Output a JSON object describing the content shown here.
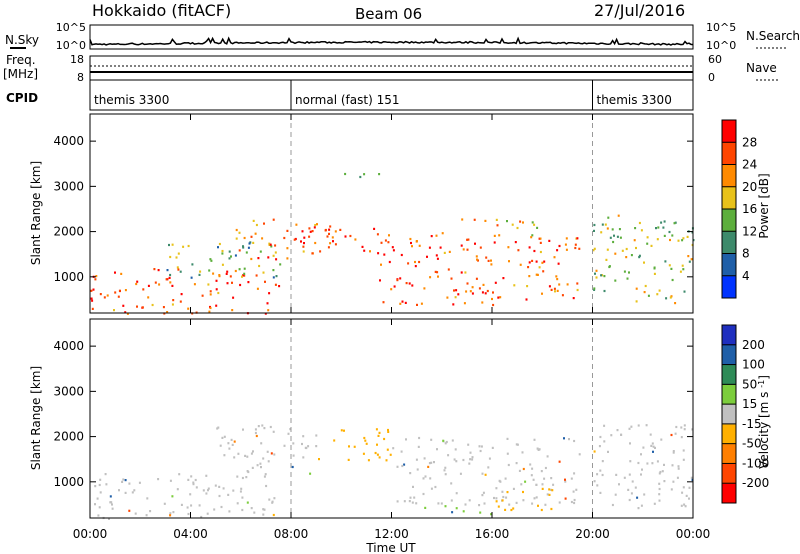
{
  "header": {
    "station": "Hokkaido (fitACF)",
    "beam": "Beam 06",
    "date": "27/Jul/2016"
  },
  "nsky": {
    "label": "N.Sky",
    "ticks_left": [
      "10^5",
      "10^0"
    ],
    "ticks_right": [
      "10^5",
      "10^0"
    ],
    "right_label": "N.Search"
  },
  "freq": {
    "label_lines": [
      "Freq.",
      "[MHz]"
    ],
    "ticks_left": [
      "18",
      "8"
    ],
    "ticks_right": [
      "60",
      "0"
    ],
    "right_label": "Nave"
  },
  "cpid": {
    "label": "CPID",
    "segments": [
      {
        "name": "themis 3300",
        "start_h": 0,
        "end_h": 8
      },
      {
        "name": "normal (fast) 151",
        "start_h": 8,
        "end_h": 20
      },
      {
        "name": "themis 3300",
        "start_h": 20,
        "end_h": 24
      }
    ]
  },
  "time_axis": {
    "label": "Time UT",
    "ticks": [
      "00:00",
      "04:00",
      "08:00",
      "12:00",
      "16:00",
      "20:00",
      "00:00"
    ],
    "range_h": [
      0,
      24
    ]
  },
  "chart_data": [
    {
      "type": "heatmap",
      "panel": "power",
      "ylabel": "Slant Range [km]",
      "yticks": [
        1000,
        2000,
        3000,
        4000
      ],
      "ylim": [
        200,
        4600
      ],
      "xlim": [
        0,
        24
      ],
      "colorbar": {
        "label": "Power [dB]",
        "ticks": [
          "4",
          "8",
          "12",
          "16",
          "20",
          "24",
          "28"
        ],
        "colors": [
          "#0033ff",
          "#1f5fa8",
          "#3d8a6b",
          "#5cae3c",
          "#e8c21a",
          "#ff8a00",
          "#ff4500",
          "#ff0000"
        ]
      },
      "regions": [
        {
          "x": [
            0,
            7.5
          ],
          "y": [
            200,
            1200
          ],
          "value": 26
        },
        {
          "x": [
            3,
            8
          ],
          "y": [
            1000,
            1800
          ],
          "value": 14
        },
        {
          "x": [
            5.8,
            9
          ],
          "y": [
            1400,
            2300
          ],
          "value": 24
        },
        {
          "x": [
            8,
            11.5
          ],
          "y": [
            1500,
            2200
          ],
          "value": 27
        },
        {
          "x": [
            11.5,
            14
          ],
          "y": [
            400,
            2000
          ],
          "value": 27
        },
        {
          "x": [
            14,
            19.5
          ],
          "y": [
            400,
            1900
          ],
          "value": 25
        },
        {
          "x": [
            14.5,
            18
          ],
          "y": [
            1900,
            2300
          ],
          "value": 20
        },
        {
          "x": [
            20,
            24
          ],
          "y": [
            400,
            2400
          ],
          "value": 15
        },
        {
          "x": [
            10,
            11.5
          ],
          "y": [
            3200,
            3400
          ],
          "value": 18
        }
      ]
    },
    {
      "type": "heatmap",
      "panel": "velocity",
      "ylabel": "Slant Range [km]",
      "yticks": [
        1000,
        2000,
        3000,
        4000
      ],
      "ylim": [
        200,
        4600
      ],
      "xlim": [
        0,
        24
      ],
      "colorbar": {
        "label": "Velocity [m s^-1]",
        "ticks": [
          "200",
          "100",
          "50",
          "15",
          "-15",
          "-50",
          "-100",
          "-200"
        ],
        "colors": [
          "#1f2fbf",
          "#1f5fa8",
          "#2e8b57",
          "#7ccd3c",
          "#c0c0c0",
          "#ffb000",
          "#ff7f00",
          "#ff4500",
          "#ff0000"
        ]
      },
      "regions": [
        {
          "x": [
            0,
            7.5
          ],
          "y": [
            200,
            1200
          ],
          "value": 0
        },
        {
          "x": [
            5,
            9
          ],
          "y": [
            1200,
            2300
          ],
          "value": 0
        },
        {
          "x": [
            9,
            12
          ],
          "y": [
            1500,
            2200
          ],
          "value": -40
        },
        {
          "x": [
            12,
            19.5
          ],
          "y": [
            500,
            2000
          ],
          "value": 0
        },
        {
          "x": [
            16,
            18.5
          ],
          "y": [
            400,
            900
          ],
          "value": -40
        },
        {
          "x": [
            20,
            24
          ],
          "y": [
            400,
            2300
          ],
          "value": 0
        },
        {
          "x": [
            13,
            16
          ],
          "y": [
            300,
            500
          ],
          "value": 30
        }
      ]
    }
  ]
}
